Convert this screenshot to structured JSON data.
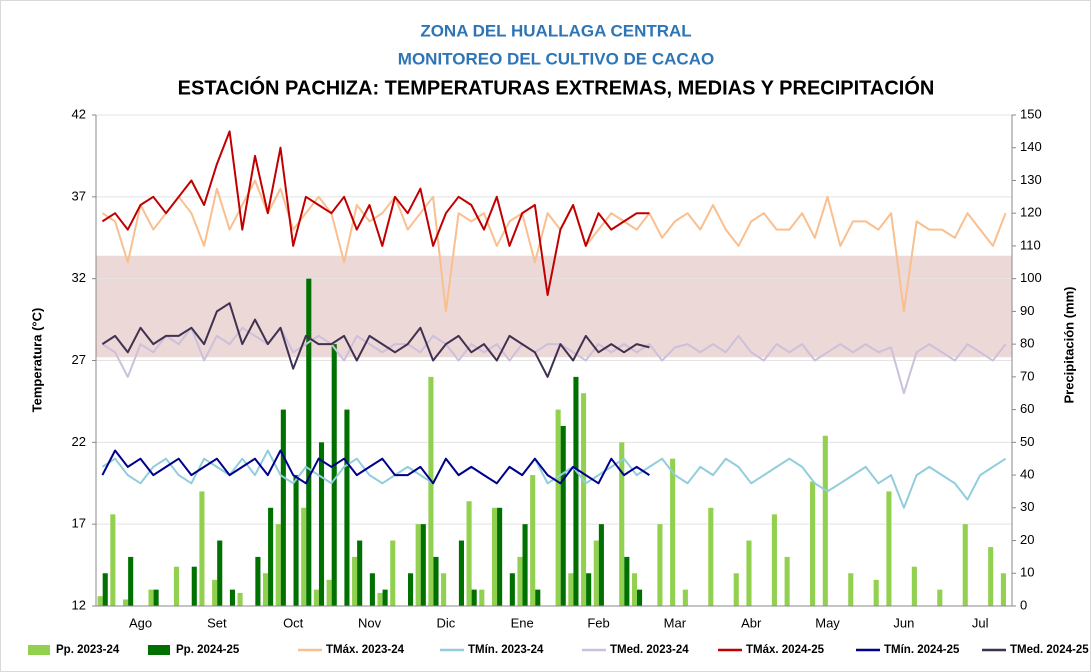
{
  "chart_data": {
    "type": "line",
    "titles": [
      "ZONA DEL HUALLAGA CENTRAL",
      "MONITOREO DEL CULTIVO DE CACAO"
    ],
    "title": "ESTACIÓN PACHIZA: TEMPERATURAS EXTREMAS, MEDIAS Y PRECIPITACIÓN",
    "ylabel": "Temperatura (°C)",
    "y2label": "Precipitación (mm)",
    "ylim": [
      12,
      42
    ],
    "yticks": [
      12,
      17,
      22,
      27,
      32,
      37,
      42
    ],
    "y2lim": [
      0,
      150
    ],
    "y2ticks": [
      0,
      10,
      20,
      30,
      40,
      50,
      60,
      70,
      80,
      90,
      100,
      110,
      120,
      130,
      140,
      150
    ],
    "shaded_band": {
      "ylim": [
        27.2,
        33.4
      ],
      "color": "#e6c8c8"
    },
    "legend": "bottom",
    "categories": [
      null,
      null,
      null,
      "Ago",
      null,
      null,
      null,
      null,
      null,
      "Set",
      null,
      null,
      null,
      null,
      null,
      "Oct",
      null,
      null,
      null,
      null,
      null,
      "Nov",
      null,
      null,
      null,
      null,
      null,
      "Dic",
      null,
      null,
      null,
      null,
      null,
      "Ene",
      null,
      null,
      null,
      null,
      null,
      "Feb",
      null,
      null,
      null,
      null,
      null,
      "Mar",
      null,
      null,
      null,
      null,
      null,
      "Abr",
      null,
      null,
      null,
      null,
      null,
      "May",
      null,
      null,
      null,
      null,
      null,
      "Jun",
      null,
      null,
      null,
      null,
      null,
      "Jul",
      null,
      null
    ],
    "series": [
      {
        "name": "Pp. 2023-24",
        "type": "bar",
        "axis": "y2",
        "color": "#92d050",
        "values": [
          3,
          28,
          2,
          0,
          5,
          0,
          12,
          0,
          35,
          8,
          0,
          4,
          0,
          10,
          25,
          0,
          30,
          5,
          8,
          0,
          15,
          0,
          4,
          20,
          0,
          25,
          70,
          10,
          0,
          32,
          5,
          30,
          0,
          15,
          40,
          0,
          60,
          10,
          65,
          20,
          0,
          50,
          10,
          0,
          25,
          45,
          5,
          0,
          30,
          0,
          10,
          20,
          0,
          28,
          15,
          0,
          38,
          52,
          0,
          10,
          0,
          8,
          35,
          0,
          12,
          0,
          5,
          0,
          25,
          0,
          18,
          10
        ]
      },
      {
        "name": "Pp. 2024-25",
        "type": "bar",
        "axis": "y2",
        "color": "#007000",
        "values": [
          10,
          0,
          15,
          0,
          5,
          0,
          0,
          12,
          0,
          20,
          5,
          0,
          15,
          30,
          60,
          40,
          100,
          50,
          80,
          60,
          20,
          10,
          5,
          0,
          10,
          25,
          15,
          0,
          20,
          5,
          0,
          30,
          10,
          25,
          5,
          0,
          55,
          70,
          10,
          25,
          0,
          15,
          5,
          0,
          null,
          null,
          null,
          null,
          null,
          null,
          null,
          null,
          null,
          null,
          null,
          null,
          null,
          null,
          null,
          null,
          null,
          null,
          null,
          null,
          null,
          null,
          null,
          null,
          null,
          null,
          null,
          null
        ]
      },
      {
        "name": "TMáx. 2023-24",
        "type": "line",
        "color": "#f9bf8f",
        "values": [
          36,
          35.5,
          33,
          36.5,
          35,
          36,
          37,
          36,
          34,
          37.5,
          35,
          36.5,
          38,
          36,
          37.5,
          35,
          36,
          37,
          36,
          33,
          36.5,
          35.5,
          36,
          37,
          35,
          36,
          37,
          30,
          36,
          35.5,
          36,
          34,
          35.5,
          36,
          33,
          36,
          35,
          36.5,
          34,
          35,
          36,
          35.5,
          35,
          36,
          34.5,
          35.5,
          36,
          35,
          36.5,
          35,
          34,
          35.5,
          36,
          35,
          35,
          36,
          34.5,
          37,
          34,
          35.5,
          35.5,
          35,
          36,
          30,
          35.5,
          35,
          35,
          34.5,
          36,
          35,
          34,
          36
        ]
      },
      {
        "name": "TMín. 2023-24",
        "type": "line",
        "color": "#92cddc",
        "values": [
          20.5,
          21,
          20,
          19.5,
          20.5,
          21,
          20,
          19.5,
          21,
          20.5,
          20,
          21,
          20,
          21.5,
          20,
          19.5,
          20.5,
          20,
          19.5,
          20.5,
          21,
          20,
          19.5,
          20,
          20.5,
          20,
          19.5,
          21,
          20,
          20.5,
          20,
          19.5,
          20.5,
          20,
          21,
          19.5,
          20,
          20.5,
          19.5,
          20,
          20.5,
          21,
          20,
          20.5,
          21,
          20,
          19.5,
          20.5,
          20,
          21,
          20.5,
          19.5,
          20,
          20.5,
          21,
          20.5,
          19.5,
          19,
          19.5,
          20,
          20.5,
          19.5,
          20,
          18,
          20,
          20.5,
          20,
          19.5,
          18.5,
          20,
          20.5,
          21
        ]
      },
      {
        "name": "TMed. 2023-24",
        "type": "line",
        "color": "#ccc0da",
        "values": [
          28,
          27.5,
          26,
          28,
          27.5,
          28.5,
          28,
          29,
          27,
          28.5,
          28,
          29,
          28.5,
          28,
          29,
          27.5,
          28,
          28.5,
          28,
          27,
          28.5,
          28,
          27.5,
          28,
          28,
          27.5,
          28.5,
          28,
          27,
          28,
          27.5,
          28,
          27,
          28,
          27.5,
          28,
          28,
          27.5,
          27,
          28,
          27.5,
          28,
          27.5,
          28,
          27,
          27.8,
          28,
          27.5,
          28,
          27.5,
          28.5,
          27.5,
          27,
          28,
          27.5,
          28,
          27,
          27.5,
          28,
          27.5,
          28,
          27.5,
          27.8,
          25,
          27.5,
          28,
          27.5,
          27,
          28,
          27.5,
          27,
          28
        ]
      },
      {
        "name": "TMáx. 2024-25",
        "type": "line",
        "color": "#c00000",
        "values": [
          35.5,
          36,
          35,
          36.5,
          37,
          36,
          37,
          38,
          36.5,
          39,
          41,
          35,
          39.5,
          36,
          40,
          34,
          37,
          36.5,
          36,
          37,
          35,
          36.5,
          34,
          37,
          36,
          37.5,
          34,
          36,
          37,
          36.5,
          35,
          37,
          34,
          36,
          36.5,
          31,
          35,
          36.5,
          34,
          36,
          35,
          35.5,
          36,
          36,
          null,
          null,
          null,
          null,
          null,
          null,
          null,
          null,
          null,
          null,
          null,
          null,
          null,
          null,
          null,
          null,
          null,
          null,
          null,
          null,
          null,
          null,
          null,
          null,
          null,
          null,
          null,
          null
        ]
      },
      {
        "name": "TMín. 2024-25",
        "type": "line",
        "color": "#00008b",
        "values": [
          20,
          21.5,
          20.5,
          21,
          20,
          20.5,
          21,
          20,
          20.5,
          21,
          20,
          20.5,
          21,
          20,
          21.5,
          20,
          19.5,
          21,
          20.5,
          21,
          20,
          20.5,
          21,
          20,
          20,
          20.5,
          19.5,
          21,
          20,
          20.5,
          20,
          19.5,
          20.5,
          20,
          21,
          20,
          19.5,
          20.5,
          20,
          19.5,
          21,
          20,
          20.5,
          20,
          null,
          null,
          null,
          null,
          null,
          null,
          null,
          null,
          null,
          null,
          null,
          null,
          null,
          null,
          null,
          null,
          null,
          null,
          null,
          null,
          null,
          null,
          null,
          null,
          null,
          null,
          null,
          null
        ]
      },
      {
        "name": "TMed. 2024-25",
        "type": "line",
        "color": "#403151",
        "values": [
          28,
          28.5,
          27.5,
          29,
          28,
          28.5,
          28.5,
          29,
          28,
          30,
          30.5,
          28,
          29.5,
          28,
          29,
          26.5,
          28.5,
          28,
          28,
          28.5,
          27,
          28.5,
          28,
          27.5,
          28,
          29,
          27,
          28,
          28.5,
          27.5,
          28,
          27,
          28.5,
          28,
          27.5,
          26,
          28,
          27,
          28.5,
          27.5,
          28,
          27.5,
          28,
          27.8,
          null,
          null,
          null,
          null,
          null,
          null,
          null,
          null,
          null,
          null,
          null,
          null,
          null,
          null,
          null,
          null,
          null,
          null,
          null,
          null,
          null,
          null,
          null,
          null,
          null,
          null,
          null,
          null
        ]
      }
    ]
  }
}
